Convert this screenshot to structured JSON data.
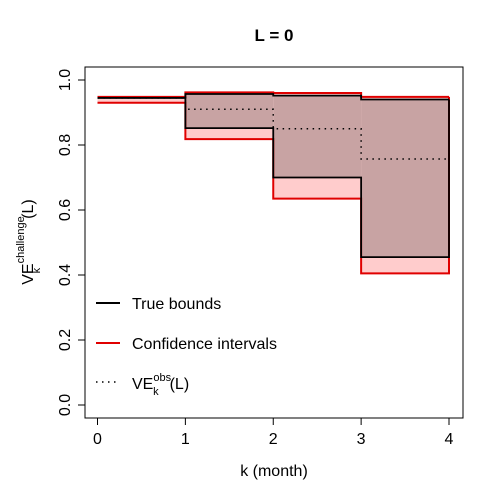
{
  "chart_data": {
    "type": "step",
    "title": "L =  0",
    "xlabel": "k (month)",
    "ylabel": {
      "base": "VE",
      "sub": "k",
      "sup": "challenge",
      "suffix": "(L)"
    },
    "xlim": [
      0,
      4
    ],
    "ylim": [
      0,
      1
    ],
    "xticks": [
      "0",
      "1",
      "2",
      "3",
      "4"
    ],
    "yticks": [
      "0.0",
      "0.2",
      "0.4",
      "0.6",
      "0.8",
      "1.0"
    ],
    "k": [
      0,
      1,
      2,
      3,
      4
    ],
    "series": [
      {
        "name": "True bounds",
        "color": "#000000",
        "dash": "solid",
        "role": "bounds",
        "lower": [
          0.945,
          0.852,
          0.7,
          0.455
        ],
        "upper": [
          0.945,
          0.957,
          0.952,
          0.94
        ]
      },
      {
        "name": "Confidence intervals",
        "color": "#e00000",
        "dash": "solid",
        "role": "ci",
        "lower": [
          0.93,
          0.818,
          0.635,
          0.405
        ],
        "upper": [
          0.948,
          0.962,
          0.96,
          0.948
        ]
      },
      {
        "name": "VE_k^obs(L)",
        "color": "#000000",
        "dash": "dotted",
        "role": "obs",
        "values": [
          0.945,
          0.91,
          0.85,
          0.757
        ]
      }
    ],
    "legend": {
      "position": "bottom-left",
      "items": [
        {
          "label": "True bounds",
          "color": "#000000",
          "dash": "solid"
        },
        {
          "label": "Confidence intervals",
          "color": "#e00000",
          "dash": "solid"
        },
        {
          "label_base": "VE",
          "label_sub": "k",
          "label_sup": "obs",
          "label_suffix": "(L)",
          "color": "#000000",
          "dash": "dotted"
        }
      ]
    },
    "colors": {
      "ci_fill": "#ffcccc",
      "bounds_fill": "#c8a3a3"
    }
  }
}
